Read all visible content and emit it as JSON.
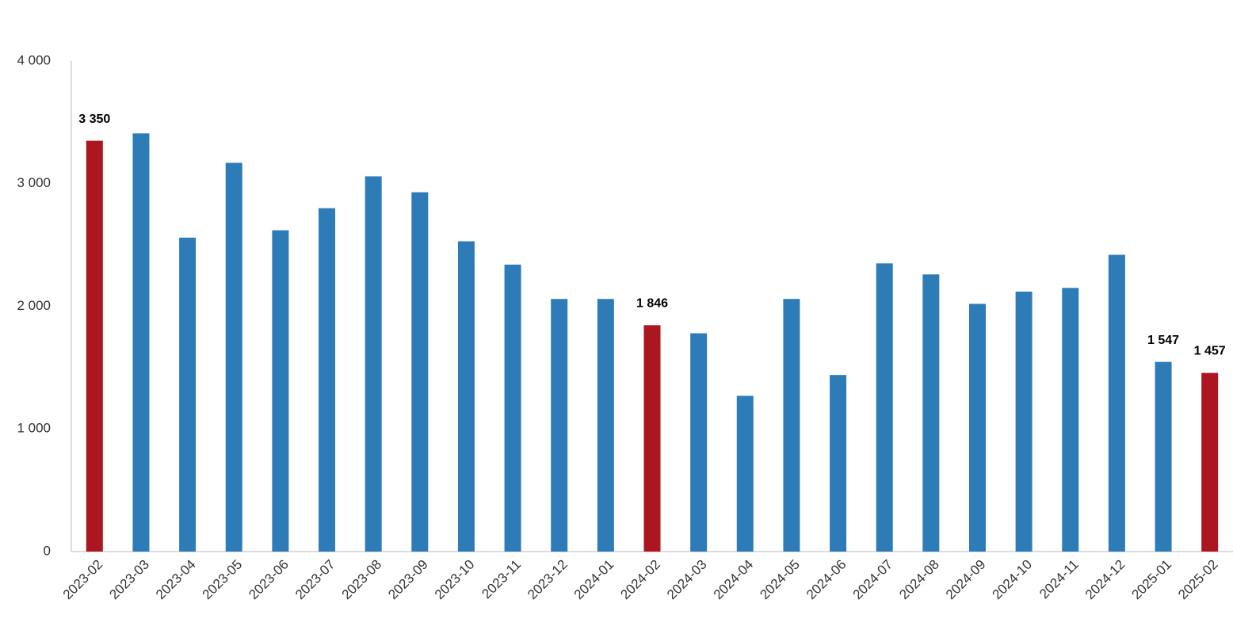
{
  "chart_data": {
    "type": "bar",
    "categories": [
      "2023-02",
      "2023-03",
      "2023-04",
      "2023-05",
      "2023-06",
      "2023-07",
      "2023-08",
      "2023-09",
      "2023-10",
      "2023-11",
      "2023-12",
      "2024-01",
      "2024-02",
      "2024-03",
      "2024-04",
      "2024-05",
      "2024-06",
      "2024-07",
      "2024-08",
      "2024-09",
      "2024-10",
      "2024-11",
      "2024-12",
      "2025-01",
      "2025-02"
    ],
    "values": [
      3350,
      3410,
      2560,
      3170,
      2620,
      2800,
      3060,
      2930,
      2530,
      2340,
      2060,
      2060,
      1846,
      1780,
      1270,
      2060,
      1440,
      2350,
      2260,
      2020,
      2120,
      2150,
      2420,
      1547,
      1457
    ],
    "value_labels": [
      "3 350",
      null,
      null,
      null,
      null,
      null,
      null,
      null,
      null,
      null,
      null,
      null,
      "1 846",
      null,
      null,
      null,
      null,
      null,
      null,
      null,
      null,
      null,
      null,
      "1 547",
      "1 457"
    ],
    "colors": [
      "#ab1620",
      "#2e7cb7",
      "#2e7cb7",
      "#2e7cb7",
      "#2e7cb7",
      "#2e7cb7",
      "#2e7cb7",
      "#2e7cb7",
      "#2e7cb7",
      "#2e7cb7",
      "#2e7cb7",
      "#2e7cb7",
      "#ab1620",
      "#2e7cb7",
      "#2e7cb7",
      "#2e7cb7",
      "#2e7cb7",
      "#2e7cb7",
      "#2e7cb7",
      "#2e7cb7",
      "#2e7cb7",
      "#2e7cb7",
      "#2e7cb7",
      "#2e7cb7",
      "#ab1620"
    ],
    "ylim": [
      0,
      4000
    ],
    "yticks": [
      0,
      {
        "value": 1000,
        "label": "1 000"
      },
      {
        "value": 2000,
        "label": "2 000"
      },
      {
        "value": 3000,
        "label": "3 000"
      },
      {
        "value": 4000,
        "label": "4 000"
      }
    ],
    "grid": false
  }
}
